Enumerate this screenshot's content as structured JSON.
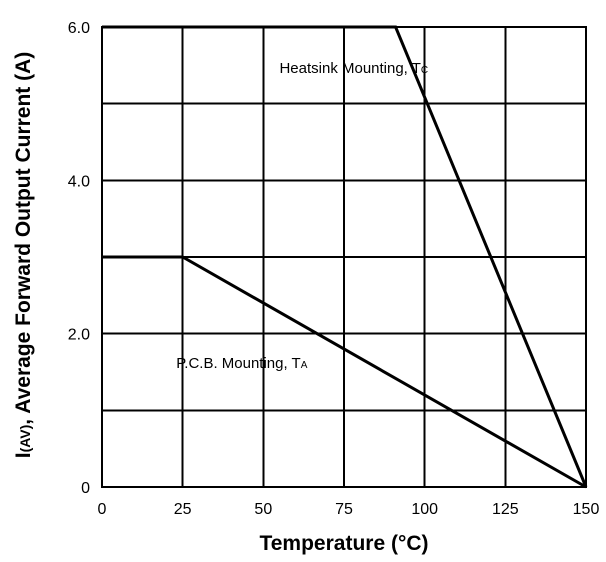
{
  "chart_data": {
    "type": "line",
    "title": "",
    "xlabel": "Temperature (°C)",
    "ylabel": {
      "main": "I",
      "sub": "(AV)",
      "rest": ", Average Forward Output Current (A)"
    },
    "xlim": [
      0,
      150
    ],
    "ylim": [
      0,
      6
    ],
    "x_ticks": [
      0,
      25,
      50,
      75,
      100,
      125,
      150
    ],
    "x_tick_labels": [
      "0",
      "25",
      "50",
      "75",
      "100",
      "125",
      "150"
    ],
    "y_gridlines": [
      0,
      1,
      2,
      3,
      4,
      5,
      6
    ],
    "y_ticks": [
      0,
      2,
      4,
      6
    ],
    "y_tick_labels": [
      "0",
      "2.0",
      "4.0",
      "6.0"
    ],
    "grid": true,
    "legend": "none",
    "series": [
      {
        "points": [
          [
            0,
            6.0
          ],
          [
            91,
            6.0
          ],
          [
            150,
            0
          ]
        ],
        "annotation": {
          "main": "Heatsink Mounting, T",
          "sub": "C",
          "x": 55,
          "y": 5.4
        }
      },
      {
        "points": [
          [
            0,
            3.0
          ],
          [
            25,
            3.0
          ],
          [
            150,
            0
          ]
        ],
        "annotation": {
          "main": "P.C.B. Mounting, T",
          "sub": "A",
          "x": 23,
          "y": 1.55
        }
      }
    ],
    "colors": {
      "line": "#000000",
      "grid": "#000000",
      "background": "#ffffff"
    }
  }
}
